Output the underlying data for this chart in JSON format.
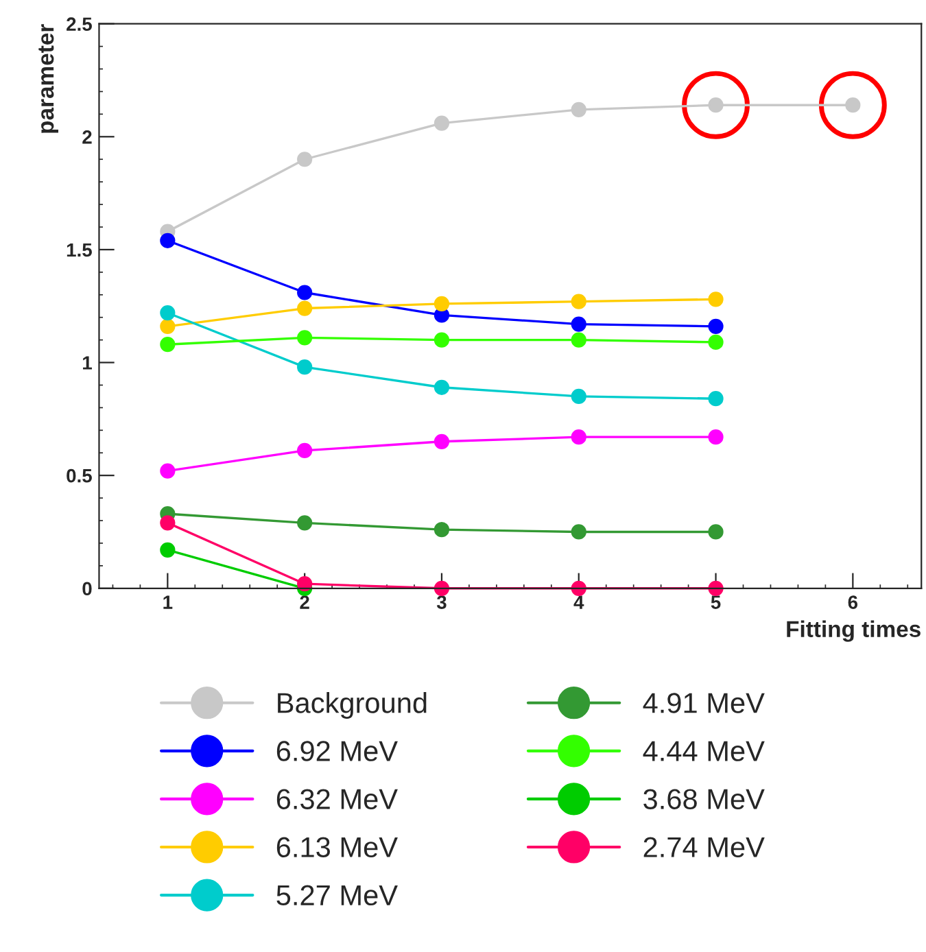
{
  "chart_data": {
    "type": "line",
    "xlabel": "Fitting times",
    "ylabel": "parameter",
    "x": [
      1,
      2,
      3,
      4,
      5,
      6
    ],
    "xlim": [
      0.5,
      6.5
    ],
    "xticks": [
      1,
      2,
      3,
      4,
      5,
      6
    ],
    "ylim": [
      0,
      2.5
    ],
    "yticks": [
      0,
      0.5,
      1,
      1.5,
      2,
      2.5
    ],
    "marker": "circle",
    "line_style": "solid",
    "grid": false,
    "legend": "bottom",
    "series": [
      {
        "name": "Background",
        "color": "#c8c8c8",
        "values": [
          1.58,
          1.9,
          2.06,
          2.12,
          2.14,
          2.14
        ]
      },
      {
        "name": "6.92 MeV",
        "color": "#0000ff",
        "values": [
          1.54,
          1.31,
          1.21,
          1.17,
          1.16,
          null
        ]
      },
      {
        "name": "6.32 MeV",
        "color": "#ff00ff",
        "values": [
          0.52,
          0.61,
          0.65,
          0.67,
          0.67,
          null
        ]
      },
      {
        "name": "6.13 MeV",
        "color": "#ffcc00",
        "values": [
          1.16,
          1.24,
          1.26,
          1.27,
          1.28,
          null
        ]
      },
      {
        "name": "5.27 MeV",
        "color": "#00cccc",
        "values": [
          1.22,
          0.98,
          0.89,
          0.85,
          0.84,
          null
        ]
      },
      {
        "name": "4.91 MeV",
        "color": "#339933",
        "values": [
          0.33,
          0.29,
          0.26,
          0.25,
          0.25,
          null
        ]
      },
      {
        "name": "4.44 MeV",
        "color": "#33ff00",
        "values": [
          1.08,
          1.11,
          1.1,
          1.1,
          1.09,
          null
        ]
      },
      {
        "name": "3.68 MeV",
        "color": "#00cc00",
        "values": [
          0.17,
          0,
          null,
          null,
          null,
          null
        ]
      },
      {
        "name": "2.74 MeV",
        "color": "#ff0066",
        "values": [
          0.29,
          0.02,
          0,
          0,
          0,
          null
        ]
      }
    ]
  }
}
